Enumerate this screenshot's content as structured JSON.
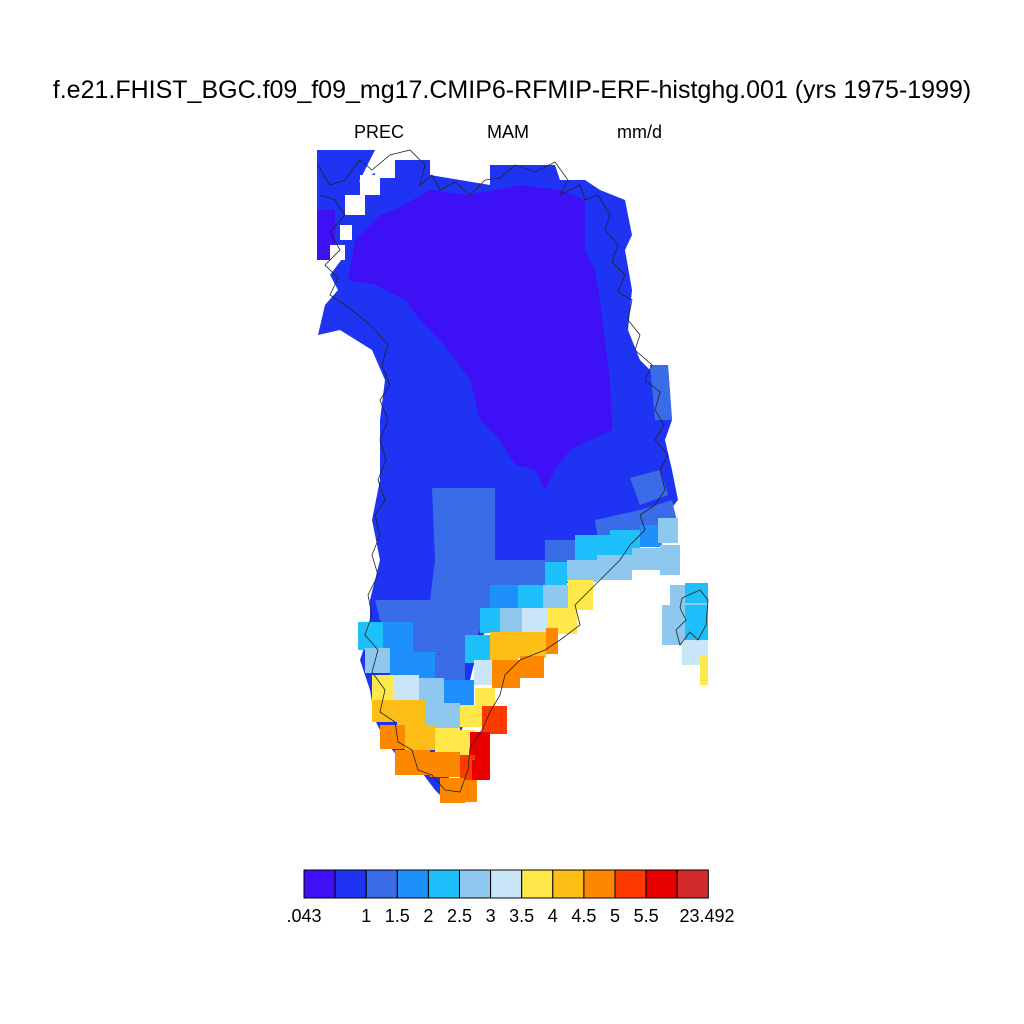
{
  "title": "f.e21.FHIST_BGC.f09_f09_mg17.CMIP6-RFMIP-ERF-histghg.001 (yrs 1975-1999)",
  "subtitle": {
    "variable": "PREC",
    "season": "MAM",
    "units": "mm/d"
  },
  "colorbar": {
    "colors": [
      "#3e10f5",
      "#1f34f2",
      "#3a6ce8",
      "#1d90fb",
      "#1ec0fb",
      "#8ec8ee",
      "#c8e6f8",
      "#ffe84a",
      "#fdbe18",
      "#fd8800",
      "#fd3a00",
      "#e80000",
      "#d22b2b"
    ],
    "labels": [
      ".043",
      "1",
      "1.5",
      "2",
      "2.5",
      "3",
      "3.5",
      "4",
      "4.5",
      "5",
      "5.5",
      "23.492"
    ]
  }
}
